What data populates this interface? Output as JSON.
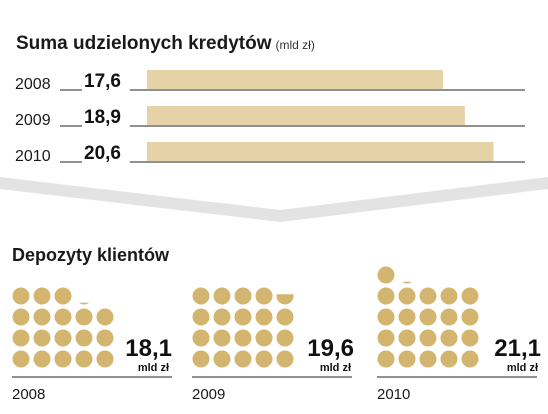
{
  "colors": {
    "accent": "#e6d2a7",
    "dot": "#d3b56f",
    "line": "#222222",
    "band": "#e3e3e3"
  },
  "chart_data": [
    {
      "type": "bar",
      "title": "Suma udzielonych kredytów",
      "unit": "(mld zł)",
      "categories": [
        "2008",
        "2009",
        "2010"
      ],
      "values": [
        17.6,
        18.9,
        20.6
      ],
      "value_labels": [
        "17,6",
        "18,9",
        "20,6"
      ],
      "xlim": [
        0,
        22
      ]
    },
    {
      "type": "pictogram",
      "title": "Depozyty klientów",
      "categories": [
        "2008",
        "2009",
        "2010"
      ],
      "values": [
        18.1,
        19.6,
        21.1
      ],
      "value_labels": [
        "18,1",
        "19,6",
        "21,1"
      ],
      "unit_label": "mld zł"
    }
  ]
}
